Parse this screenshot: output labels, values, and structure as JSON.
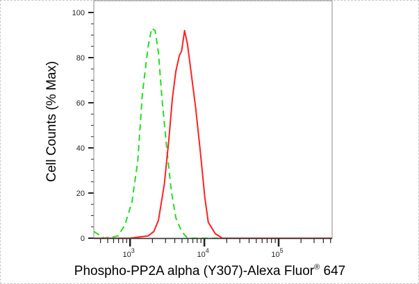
{
  "chart_data": {
    "type": "line",
    "title": "",
    "xlabel_parts": [
      "Phospho-PP2A alpha (Y307)-Alexa Fluor",
      "®",
      " 647"
    ],
    "ylabel": "Cell Counts (% Max)",
    "xscale": "log",
    "xlim": [
      325,
      525000
    ],
    "ylim": [
      0,
      100
    ],
    "grid": false,
    "y_ticks": [
      0,
      20,
      40,
      60,
      80,
      100
    ],
    "y_tick_labels": [
      "0",
      "20",
      "40",
      "60",
      "80",
      "100"
    ],
    "x_ticks": [
      1000,
      10000,
      100000
    ],
    "x_tick_labels": [
      {
        "base": "10",
        "exp": "3"
      },
      {
        "base": "10",
        "exp": "4"
      },
      {
        "base": "10",
        "exp": "5"
      }
    ],
    "series": [
      {
        "color": "#22dd22",
        "style": "dashed",
        "x": [
          325,
          448,
          689,
          855,
          1060,
          1268,
          1463,
          1750,
          1950,
          2170,
          2415,
          2690,
          3110,
          3590,
          4140,
          4950,
          5930,
          525000
        ],
        "y": [
          3,
          0,
          1,
          6,
          16,
          34,
          64,
          85,
          93,
          92,
          82,
          62,
          40,
          21,
          9,
          3,
          0,
          0
        ]
      },
      {
        "color": "#ff2020",
        "style": "solid",
        "x": [
          325,
          987,
          1314,
          1750,
          2094,
          2415,
          2890,
          3335,
          3715,
          4140,
          4615,
          4950,
          5410,
          5930,
          6600,
          7620,
          8790,
          10160,
          11300,
          14020,
          17380,
          525000
        ],
        "y": [
          0,
          0,
          0.5,
          1,
          3,
          8,
          24,
          44,
          62,
          74,
          81,
          83,
          92,
          86,
          74,
          58,
          39,
          18,
          7,
          2,
          0,
          0
        ]
      }
    ]
  }
}
